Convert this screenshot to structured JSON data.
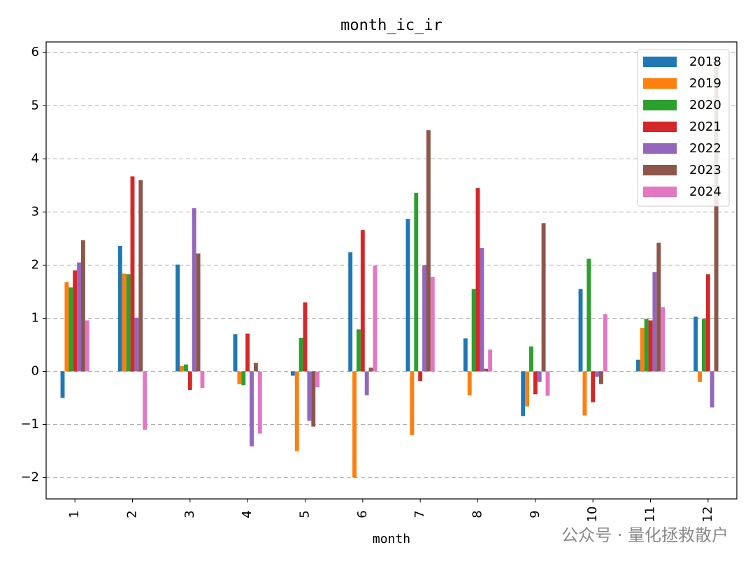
{
  "chart_data": {
    "type": "bar",
    "title": "month_ic_ir",
    "x_label": "month",
    "watermark": "公众号 · 量化拯救散户",
    "categories": [
      "1",
      "2",
      "3",
      "4",
      "5",
      "6",
      "7",
      "8",
      "9",
      "10",
      "11",
      "12"
    ],
    "series": [
      {
        "name": "2018",
        "color": "#1f77b4",
        "values": [
          -0.5,
          2.36,
          2.01,
          0.7,
          -0.08,
          2.24,
          2.87,
          0.62,
          -0.84,
          1.55,
          0.22,
          1.03
        ]
      },
      {
        "name": "2019",
        "color": "#ff7f0e",
        "values": [
          1.68,
          1.84,
          0.1,
          -0.24,
          -1.5,
          -2.0,
          -1.2,
          -0.45,
          -0.66,
          -0.83,
          0.82,
          -0.2
        ]
      },
      {
        "name": "2020",
        "color": "#2ca02c",
        "values": [
          1.58,
          1.83,
          0.13,
          -0.26,
          0.63,
          0.79,
          3.36,
          1.55,
          0.47,
          2.12,
          0.99,
          0.99
        ]
      },
      {
        "name": "2021",
        "color": "#d62728",
        "values": [
          1.9,
          3.67,
          -0.35,
          0.71,
          1.3,
          2.66,
          -0.18,
          3.45,
          -0.43,
          -0.58,
          0.96,
          1.83
        ]
      },
      {
        "name": "2022",
        "color": "#9467bd",
        "values": [
          2.05,
          1.01,
          3.07,
          -1.41,
          -0.93,
          -0.45,
          2.0,
          2.32,
          -0.2,
          -0.1,
          1.87,
          -0.68
        ]
      },
      {
        "name": "2023",
        "color": "#8c564b",
        "values": [
          2.47,
          3.6,
          2.22,
          0.16,
          -1.04,
          0.07,
          4.54,
          0.05,
          2.79,
          -0.24,
          2.42,
          5.9
        ]
      },
      {
        "name": "2024",
        "color": "#e377c2",
        "values": [
          0.96,
          -1.1,
          -0.31,
          -1.17,
          -0.3,
          1.99,
          1.78,
          0.41,
          -0.46,
          1.08,
          1.21,
          0
        ]
      }
    ],
    "ylim": [
      -2.4,
      6.2
    ],
    "yticks": [
      {
        "value": -2,
        "label": "−2"
      },
      {
        "value": -1,
        "label": "−1"
      },
      0,
      1,
      2,
      3,
      4,
      5,
      6
    ],
    "grid": true,
    "legend": "upper right"
  }
}
